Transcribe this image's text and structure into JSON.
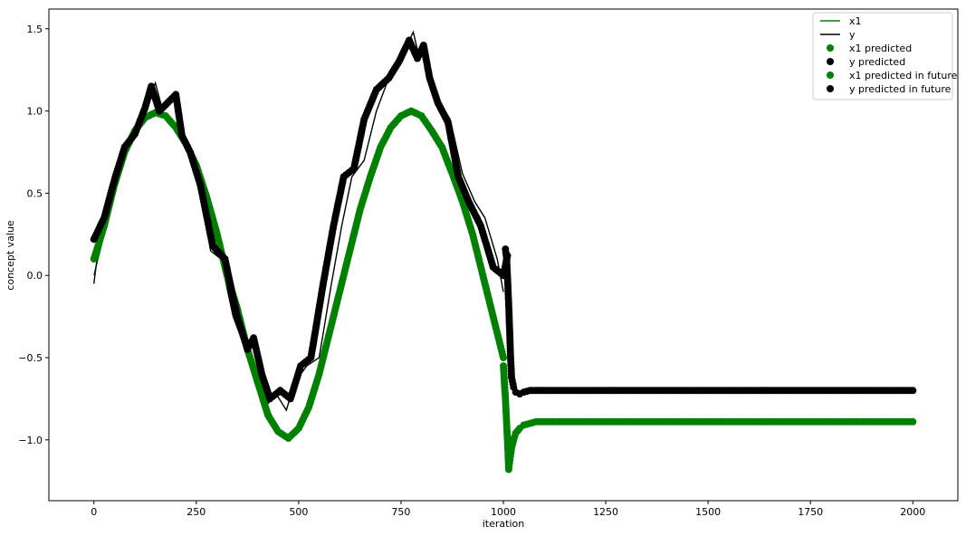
{
  "chart_data": {
    "type": "line",
    "xlabel": "iteration",
    "ylabel": "concept value",
    "xlim": [
      -110,
      2110
    ],
    "ylim": [
      -1.37,
      1.62
    ],
    "xticks": [
      0,
      250,
      500,
      750,
      1000,
      1250,
      1500,
      1750,
      2000
    ],
    "xtick_labels": [
      "0",
      "250",
      "500",
      "750",
      "1000",
      "1250",
      "1500",
      "1750",
      "2000"
    ],
    "yticks": [
      -1.0,
      -0.5,
      0.0,
      0.5,
      1.0,
      1.5
    ],
    "ytick_labels": [
      "−1.0",
      "−0.5",
      "0.0",
      "0.5",
      "1.0",
      "1.5"
    ],
    "grid": false,
    "legend_position": "upper-right",
    "colors": {
      "x1": "#008000",
      "y": "#000000"
    },
    "series": [
      {
        "name": "x1",
        "style": "line",
        "color": "#008000",
        "x": [
          0,
          25,
          50,
          75,
          100,
          125,
          150,
          175,
          200,
          250,
          300,
          350,
          400,
          450,
          470,
          500,
          550,
          600,
          650,
          700,
          750,
          780,
          800,
          850,
          900,
          950,
          990,
          1000
        ],
        "y": [
          0.0,
          0.25,
          0.55,
          0.74,
          0.87,
          0.95,
          0.99,
          0.97,
          0.91,
          0.67,
          0.26,
          -0.2,
          -0.65,
          -0.95,
          -0.99,
          -0.93,
          -0.6,
          -0.1,
          0.4,
          0.78,
          0.97,
          1.0,
          0.97,
          0.78,
          0.45,
          0.0,
          -0.4,
          -0.5
        ]
      },
      {
        "name": "y",
        "style": "line",
        "color": "#000000",
        "x": [
          0,
          10,
          25,
          50,
          75,
          100,
          125,
          150,
          165,
          180,
          200,
          215,
          230,
          260,
          285,
          310,
          340,
          370,
          385,
          405,
          425,
          445,
          470,
          490,
          520,
          550,
          580,
          605,
          630,
          660,
          690,
          720,
          740,
          760,
          780,
          795,
          810,
          825,
          845,
          870,
          900,
          930,
          955,
          985,
          1000
        ],
        "y": [
          -0.05,
          0.15,
          0.35,
          0.6,
          0.8,
          0.88,
          1.0,
          1.17,
          1.03,
          1.05,
          1.1,
          0.85,
          0.75,
          0.55,
          0.15,
          0.1,
          -0.25,
          -0.45,
          -0.38,
          -0.6,
          -0.78,
          -0.72,
          -0.82,
          -0.65,
          -0.55,
          -0.5,
          -0.05,
          0.3,
          0.6,
          0.7,
          1.0,
          1.2,
          1.25,
          1.38,
          1.48,
          1.32,
          1.4,
          1.2,
          1.05,
          0.95,
          0.62,
          0.45,
          0.35,
          0.1,
          -0.1
        ]
      },
      {
        "name": "x1 predicted",
        "style": "scatter",
        "color": "#008000",
        "x": [
          0,
          25,
          50,
          75,
          100,
          125,
          150,
          175,
          200,
          225,
          250,
          275,
          300,
          325,
          350,
          375,
          400,
          425,
          450,
          475,
          500,
          525,
          550,
          575,
          600,
          625,
          650,
          675,
          700,
          725,
          750,
          775,
          800,
          825,
          850,
          875,
          900,
          925,
          950,
          975,
          1000
        ],
        "y": [
          0.1,
          0.3,
          0.55,
          0.75,
          0.88,
          0.96,
          0.99,
          0.97,
          0.9,
          0.8,
          0.67,
          0.48,
          0.26,
          0.0,
          -0.2,
          -0.45,
          -0.65,
          -0.85,
          -0.95,
          -0.99,
          -0.93,
          -0.8,
          -0.6,
          -0.35,
          -0.1,
          0.15,
          0.4,
          0.6,
          0.78,
          0.9,
          0.97,
          1.0,
          0.97,
          0.88,
          0.78,
          0.62,
          0.45,
          0.25,
          0.0,
          -0.25,
          -0.5
        ]
      },
      {
        "name": "y predicted",
        "style": "scatter",
        "color": "#000000",
        "x": [
          0,
          25,
          50,
          75,
          100,
          125,
          140,
          160,
          180,
          200,
          215,
          235,
          260,
          290,
          320,
          350,
          375,
          390,
          410,
          430,
          455,
          480,
          505,
          530,
          560,
          585,
          610,
          635,
          660,
          690,
          720,
          745,
          770,
          790,
          805,
          820,
          840,
          865,
          890,
          915,
          945,
          975,
          1000,
          1010
        ],
        "y": [
          0.22,
          0.35,
          0.58,
          0.78,
          0.86,
          1.02,
          1.15,
          1.0,
          1.05,
          1.1,
          0.85,
          0.75,
          0.55,
          0.18,
          0.1,
          -0.25,
          -0.45,
          -0.38,
          -0.6,
          -0.75,
          -0.7,
          -0.75,
          -0.55,
          -0.5,
          -0.05,
          0.3,
          0.6,
          0.65,
          0.95,
          1.13,
          1.2,
          1.3,
          1.43,
          1.32,
          1.4,
          1.2,
          1.05,
          0.93,
          0.6,
          0.45,
          0.3,
          0.05,
          0.0,
          0.12
        ]
      },
      {
        "name": "x1 predicted in future",
        "style": "scatter",
        "color": "#008000",
        "x": [
          1000,
          1005,
          1010,
          1013,
          1016,
          1020,
          1025,
          1030,
          1040,
          1050,
          1065,
          1080,
          1100,
          1150,
          1200,
          1250,
          1300,
          1350,
          1400,
          1450,
          1500,
          1550,
          1600,
          1650,
          1700,
          1750,
          1800,
          1850,
          1900,
          1950,
          2000
        ],
        "y": [
          -0.55,
          -0.75,
          -1.0,
          -1.18,
          -1.12,
          -1.05,
          -1.0,
          -0.96,
          -0.93,
          -0.91,
          -0.9,
          -0.89,
          -0.89,
          -0.89,
          -0.89,
          -0.89,
          -0.89,
          -0.89,
          -0.89,
          -0.89,
          -0.89,
          -0.89,
          -0.89,
          -0.89,
          -0.89,
          -0.89,
          -0.89,
          -0.89,
          -0.89,
          -0.89,
          -0.89
        ]
      },
      {
        "name": "y predicted in future",
        "style": "scatter",
        "color": "#000000",
        "x": [
          1005,
          1008,
          1011,
          1014,
          1017,
          1020,
          1025,
          1030,
          1040,
          1050,
          1065,
          1080,
          1100,
          1150,
          1200,
          1250,
          1300,
          1350,
          1400,
          1450,
          1500,
          1550,
          1600,
          1650,
          1700,
          1750,
          1800,
          1850,
          1900,
          1950,
          2000
        ],
        "y": [
          0.16,
          0.1,
          -0.06,
          -0.24,
          -0.46,
          -0.62,
          -0.68,
          -0.71,
          -0.72,
          -0.71,
          -0.7,
          -0.7,
          -0.7,
          -0.7,
          -0.7,
          -0.7,
          -0.7,
          -0.7,
          -0.7,
          -0.7,
          -0.7,
          -0.7,
          -0.7,
          -0.7,
          -0.7,
          -0.7,
          -0.7,
          -0.7,
          -0.7,
          -0.7,
          -0.7
        ]
      }
    ],
    "legend": [
      {
        "label": "x1",
        "marker": "line",
        "color": "#008000"
      },
      {
        "label": "y",
        "marker": "line",
        "color": "#000000"
      },
      {
        "label": "x1 predicted",
        "marker": "dot",
        "color": "#008000"
      },
      {
        "label": "y predicted",
        "marker": "dot",
        "color": "#000000"
      },
      {
        "label": "x1 predicted in future",
        "marker": "dot",
        "color": "#008000"
      },
      {
        "label": "y predicted in future",
        "marker": "dot",
        "color": "#000000"
      }
    ]
  }
}
